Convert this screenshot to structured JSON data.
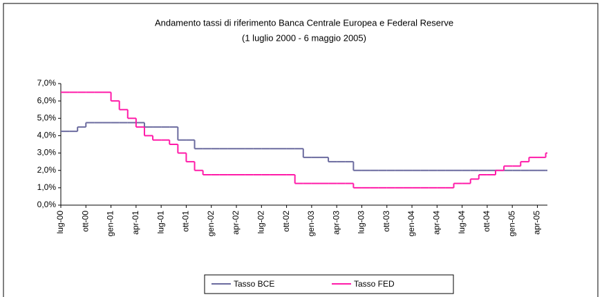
{
  "chart_data": {
    "type": "step-line",
    "title": "Andamento tassi di riferimento Banca Centrale Europea e Federal Reserve",
    "subtitle": "(1 luglio 2000 - 6 maggio 2005)",
    "categories": [
      "lug-00",
      null,
      null,
      "ott-00",
      null,
      null,
      "gen-01",
      null,
      null,
      "apr-01",
      null,
      null,
      "lug-01",
      null,
      null,
      "ott-01",
      null,
      null,
      "gen-02",
      null,
      null,
      "apr-02",
      null,
      null,
      "lug-02",
      null,
      null,
      "ott-02",
      null,
      null,
      "gen-03",
      null,
      null,
      "apr-03",
      null,
      null,
      "lug-03",
      null,
      null,
      "ott-03",
      null,
      null,
      "gen-04",
      null,
      null,
      "apr-04",
      null,
      null,
      "lug-04",
      null,
      null,
      "ott-04",
      null,
      null,
      "gen-05",
      null,
      null,
      "apr-05",
      null
    ],
    "series": [
      {
        "name": "Tasso BCE",
        "color": "#6a6a9e",
        "values": [
          4.25,
          4.25,
          4.5,
          4.75,
          4.75,
          4.75,
          4.75,
          4.75,
          4.75,
          4.75,
          4.5,
          4.5,
          4.5,
          4.5,
          3.75,
          3.75,
          3.25,
          3.25,
          3.25,
          3.25,
          3.25,
          3.25,
          3.25,
          3.25,
          3.25,
          3.25,
          3.25,
          3.25,
          3.25,
          2.75,
          2.75,
          2.75,
          2.5,
          2.5,
          2.5,
          2.0,
          2.0,
          2.0,
          2.0,
          2.0,
          2.0,
          2.0,
          2.0,
          2.0,
          2.0,
          2.0,
          2.0,
          2.0,
          2.0,
          2.0,
          2.0,
          2.0,
          2.0,
          2.0,
          2.0,
          2.0,
          2.0,
          2.0,
          2.0
        ]
      },
      {
        "name": "Tasso FED",
        "color": "#ff1aa8",
        "values": [
          6.5,
          6.5,
          6.5,
          6.5,
          6.5,
          6.5,
          6.0,
          5.5,
          5.0,
          4.5,
          4.0,
          3.75,
          3.75,
          3.5,
          3.0,
          2.5,
          2.0,
          1.75,
          1.75,
          1.75,
          1.75,
          1.75,
          1.75,
          1.75,
          1.75,
          1.75,
          1.75,
          1.75,
          1.25,
          1.25,
          1.25,
          1.25,
          1.25,
          1.25,
          1.25,
          1.0,
          1.0,
          1.0,
          1.0,
          1.0,
          1.0,
          1.0,
          1.0,
          1.0,
          1.0,
          1.0,
          1.0,
          1.25,
          1.25,
          1.5,
          1.75,
          1.75,
          2.0,
          2.25,
          2.25,
          2.5,
          2.75,
          2.75,
          3.0
        ]
      }
    ],
    "ylim": [
      0,
      7
    ],
    "yticks": [
      {
        "value": 0,
        "label": "0,0%"
      },
      {
        "value": 1,
        "label": "1,0%"
      },
      {
        "value": 2,
        "label": "2,0%"
      },
      {
        "value": 3,
        "label": "3,0%"
      },
      {
        "value": 4,
        "label": "4,0%"
      },
      {
        "value": 5,
        "label": "5,0%"
      },
      {
        "value": 6,
        "label": "6,0%"
      },
      {
        "value": 7,
        "label": "7,0%"
      }
    ],
    "legend": "bottom"
  }
}
